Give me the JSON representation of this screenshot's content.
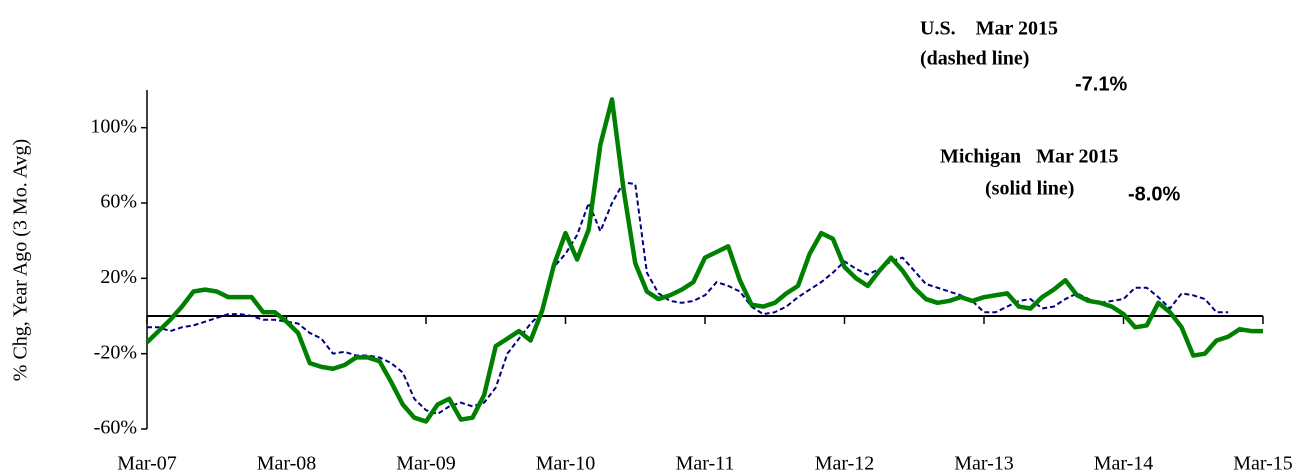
{
  "chart_data": {
    "type": "line",
    "y_label": "% Chg, Year Ago (3 Mo. Avg)",
    "x": [
      "Mar-07",
      null,
      null,
      null,
      null,
      null,
      null,
      null,
      null,
      null,
      null,
      null,
      "Mar-08",
      null,
      null,
      null,
      null,
      null,
      null,
      null,
      null,
      null,
      null,
      null,
      "Mar-09",
      null,
      null,
      null,
      null,
      null,
      null,
      null,
      null,
      null,
      null,
      null,
      "Mar-10",
      null,
      null,
      null,
      null,
      null,
      null,
      null,
      null,
      null,
      null,
      null,
      "Mar-11",
      null,
      null,
      null,
      null,
      null,
      null,
      null,
      null,
      null,
      null,
      null,
      "Mar-12",
      null,
      null,
      null,
      null,
      null,
      null,
      null,
      null,
      null,
      null,
      null,
      "Mar-13",
      null,
      null,
      null,
      null,
      null,
      null,
      null,
      null,
      null,
      null,
      null,
      "Mar-14",
      null,
      null,
      null,
      null,
      null,
      null,
      null,
      null,
      null,
      null,
      null,
      "Mar-15"
    ],
    "series": [
      {
        "color": "#000080",
        "dash": true,
        "values": [
          -6,
          -6,
          -8,
          -6,
          -5,
          -3,
          -1,
          1,
          1,
          0,
          -2,
          -2,
          -3,
          -4,
          -9,
          -12,
          -20,
          -19,
          -21,
          -21,
          -22,
          -25,
          -30,
          -44,
          -50,
          -52,
          -48,
          -46,
          -48,
          -46,
          -38,
          -20,
          -12,
          -4,
          2,
          26,
          33,
          43,
          60,
          45,
          60,
          71,
          70,
          23,
          12,
          8,
          7,
          8,
          11,
          18,
          16,
          13,
          5,
          1,
          2,
          5,
          10,
          14,
          18,
          23,
          29,
          25,
          22,
          25,
          29,
          31,
          24,
          17,
          15,
          13,
          11,
          8,
          2,
          2,
          5,
          8,
          9,
          4,
          5,
          9,
          12,
          9,
          7,
          8,
          9,
          15,
          15,
          10,
          4,
          12,
          11,
          9,
          2,
          2,
          null,
          null,
          null
        ]
      },
      {
        "color": "#008000",
        "dash": false,
        "values": [
          -14,
          -8,
          -2,
          5,
          13,
          14,
          13,
          10,
          10,
          10,
          2,
          2,
          -3,
          -9,
          -25,
          -27,
          -28,
          -26,
          -22,
          -22,
          -24,
          -35,
          -47,
          -54,
          -56,
          -47,
          -44,
          -55,
          -54,
          -42,
          -16,
          -12,
          -8,
          -13,
          3,
          27,
          44,
          30,
          46,
          91,
          115,
          67,
          28,
          13,
          9,
          11,
          14,
          18,
          31,
          34,
          37,
          19,
          6,
          5,
          7,
          12,
          16,
          33,
          44,
          41,
          26,
          20,
          16,
          24,
          31,
          24,
          15,
          9,
          7,
          8,
          10,
          8,
          10,
          11,
          12,
          5,
          4,
          10,
          14,
          19,
          11,
          8,
          7,
          5,
          1,
          -6,
          -5,
          7,
          2,
          -6,
          -21,
          -20,
          -13,
          -11,
          -7,
          -8,
          -8
        ]
      }
    ],
    "ylim": [
      -60,
      120
    ],
    "yticks": [
      {
        "value": -60,
        "label": "-60%"
      },
      {
        "value": -20,
        "label": "-20%"
      },
      {
        "value": 20,
        "label": "20%"
      },
      {
        "value": 60,
        "label": "60%"
      },
      {
        "value": 100,
        "label": "100%"
      }
    ],
    "annotations": [
      {
        "text": "U.S.    Mar 2015",
        "color": "#000080"
      },
      {
        "text": "(dashed line)",
        "color": "#000080"
      },
      {
        "text": "-7.1%",
        "color": "#000080"
      },
      {
        "text": "Michigan   Mar 2015",
        "color": "#008000"
      },
      {
        "text": "(solid line)",
        "color": "#008000"
      },
      {
        "text": "-8.0%",
        "color": "#008000"
      }
    ]
  }
}
